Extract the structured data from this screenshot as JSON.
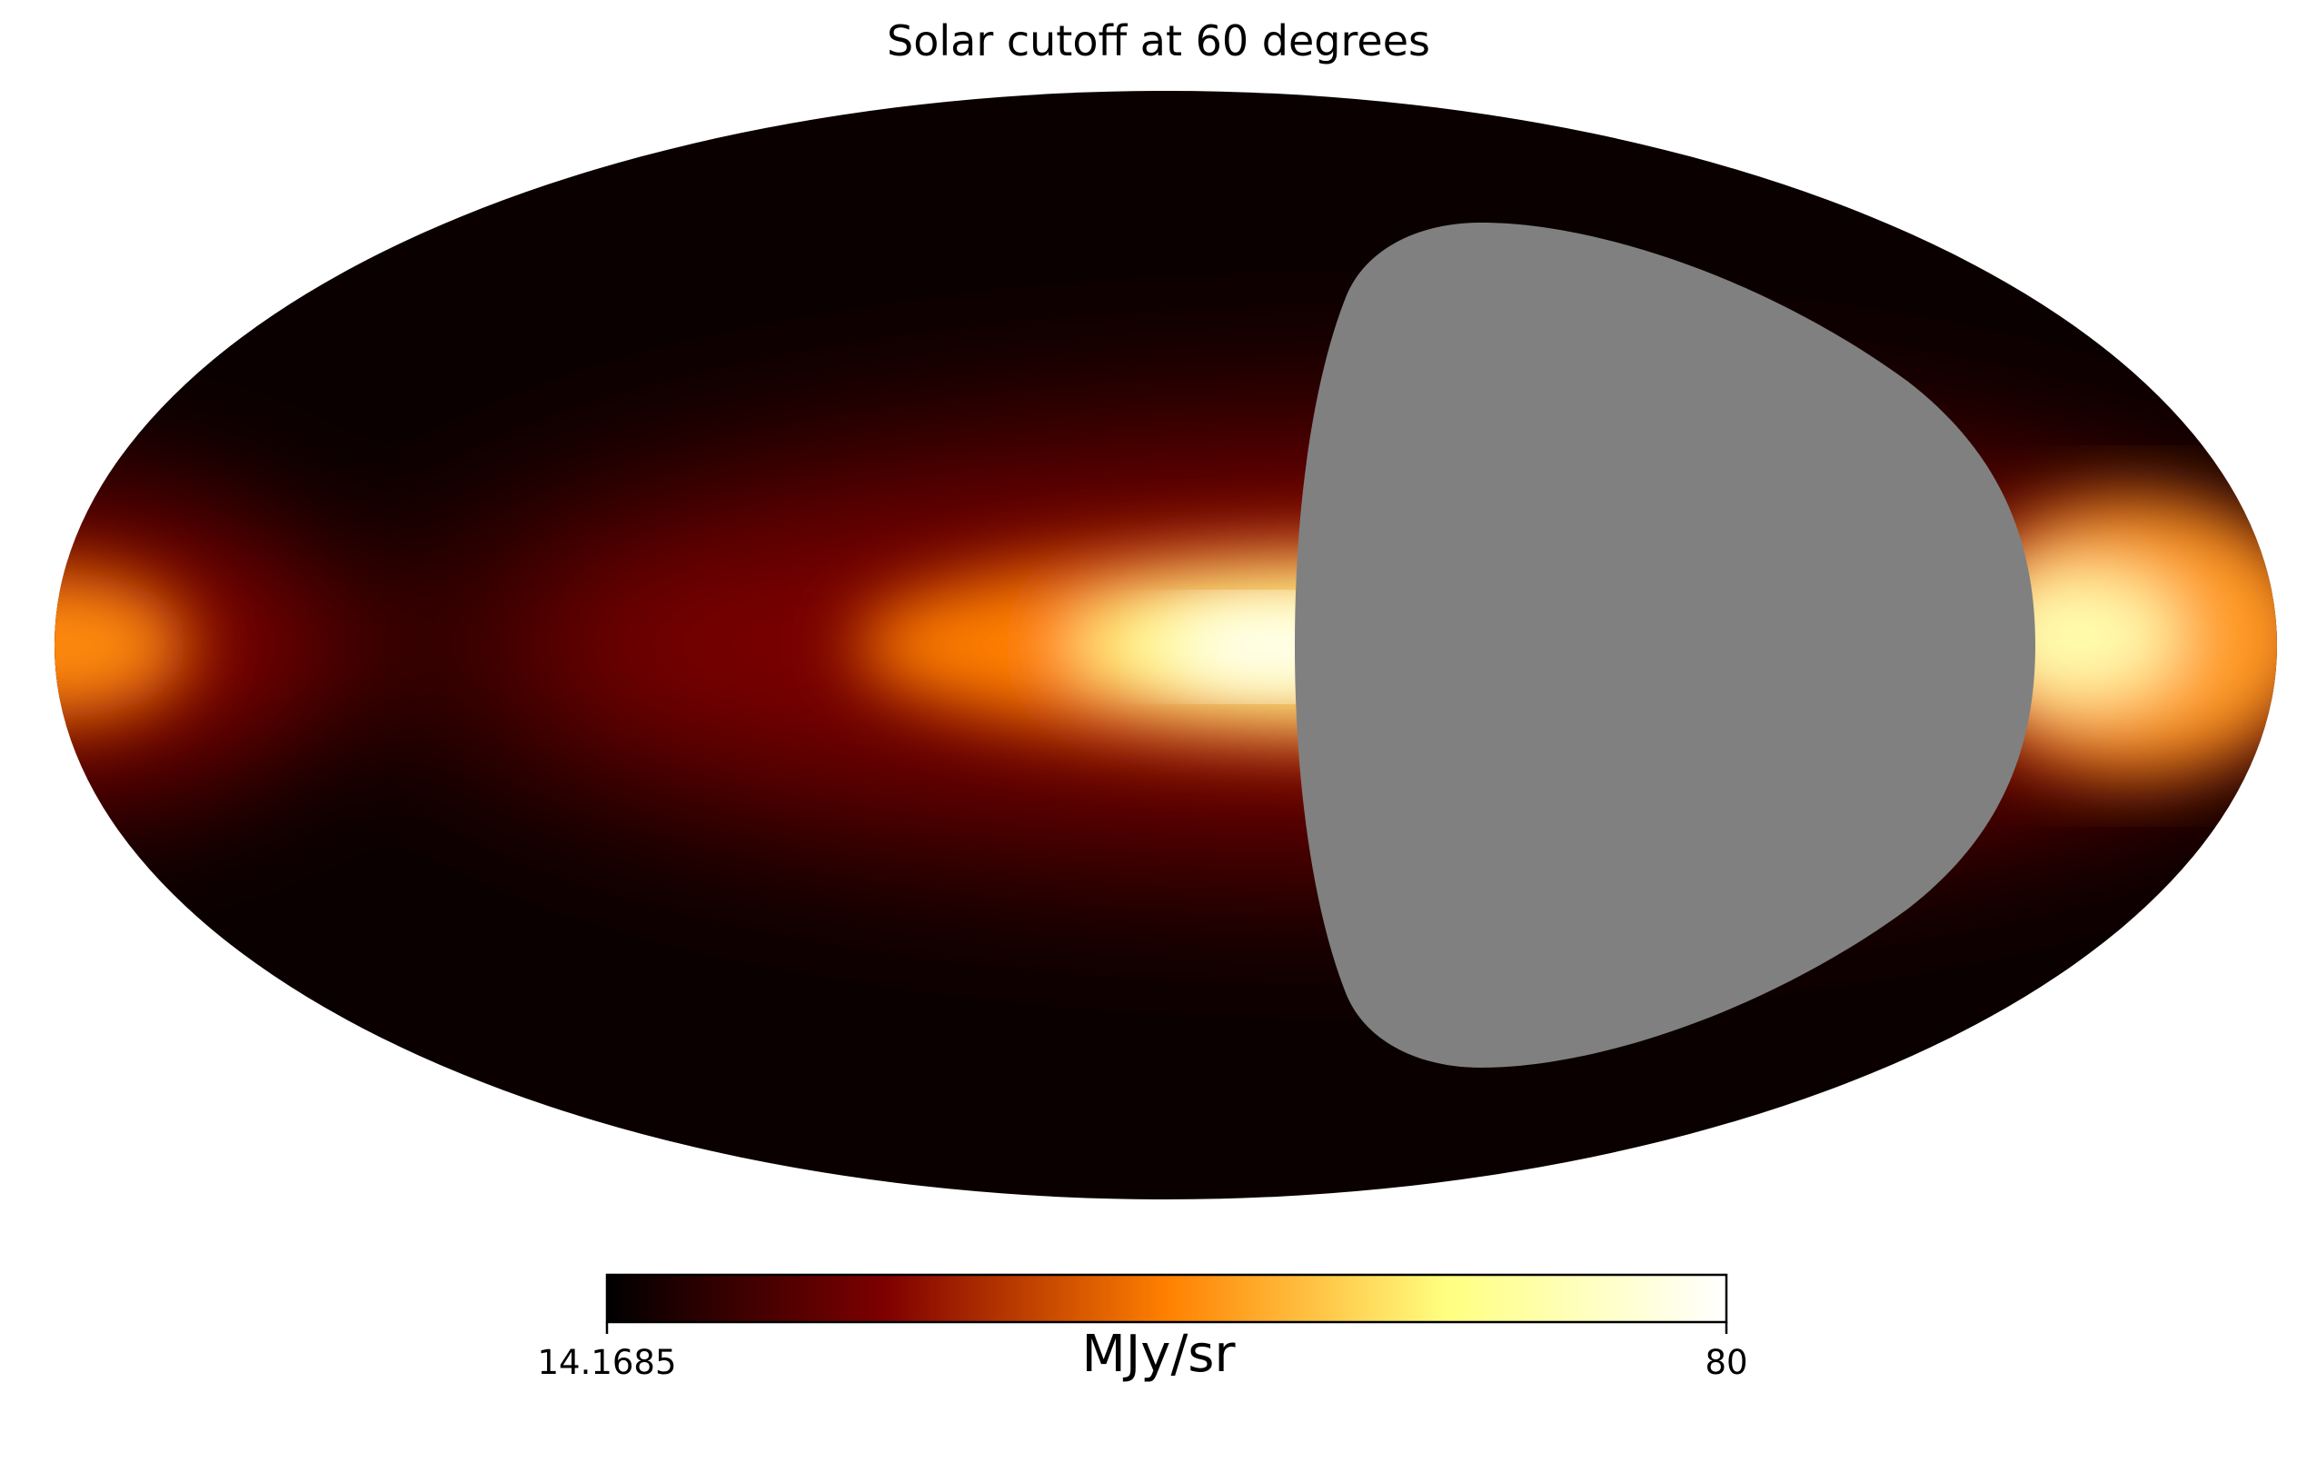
{
  "chart_data": {
    "type": "heatmap",
    "projection": "mollweide",
    "title": "Solar cutoff at 60 degrees",
    "colormap": "afmhot",
    "masked_color": "#808080",
    "masked_region": {
      "description_visible": "grey masked region",
      "solar_cutoff_deg": 60
    },
    "colorbar": {
      "orientation": "horizontal",
      "min": 14.1685,
      "max": 80,
      "min_label": "14.1685",
      "max_label": "80",
      "unit": "MJy/sr",
      "stops": [
        "#000000",
        "#7f0000",
        "#ff8000",
        "#ffff80",
        "#ffffff"
      ]
    }
  }
}
